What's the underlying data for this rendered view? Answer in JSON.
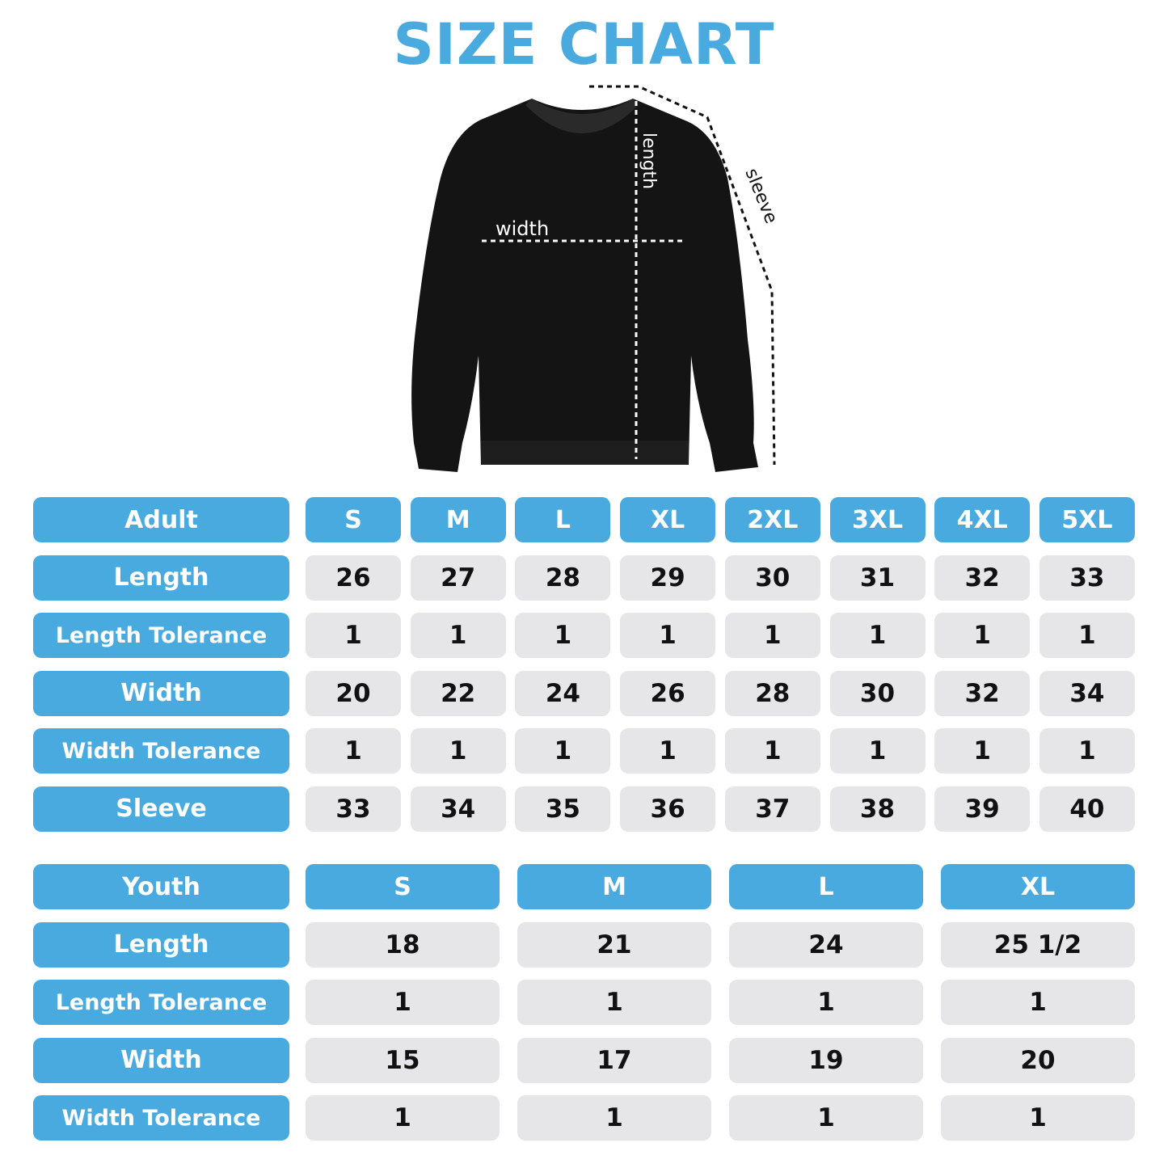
{
  "title": "SIZE CHART",
  "diagram_labels": {
    "width": "width",
    "length": "length",
    "sleeve": "sleeve"
  },
  "colors": {
    "accent": "#48aadf",
    "cell_bg": "#e6e6e8",
    "garment": "#111111"
  },
  "garment_icon": "sweatshirt-icon",
  "tables": [
    {
      "name": "adult",
      "header": "Adult",
      "sizes": [
        "S",
        "M",
        "L",
        "XL",
        "2XL",
        "3XL",
        "4XL",
        "5XL"
      ],
      "rows": [
        {
          "label": "Length",
          "values": [
            "26",
            "27",
            "28",
            "29",
            "30",
            "31",
            "32",
            "33"
          ]
        },
        {
          "label": "Length Tolerance",
          "values": [
            "1",
            "1",
            "1",
            "1",
            "1",
            "1",
            "1",
            "1"
          ]
        },
        {
          "label": "Width",
          "values": [
            "20",
            "22",
            "24",
            "26",
            "28",
            "30",
            "32",
            "34"
          ]
        },
        {
          "label": "Width Tolerance",
          "values": [
            "1",
            "1",
            "1",
            "1",
            "1",
            "1",
            "1",
            "1"
          ]
        },
        {
          "label": "Sleeve",
          "values": [
            "33",
            "34",
            "35",
            "36",
            "37",
            "38",
            "39",
            "40"
          ]
        }
      ]
    },
    {
      "name": "youth",
      "header": "Youth",
      "sizes": [
        "S",
        "M",
        "L",
        "XL"
      ],
      "rows": [
        {
          "label": "Length",
          "values": [
            "18",
            "21",
            "24",
            "25 1/2"
          ]
        },
        {
          "label": "Length Tolerance",
          "values": [
            "1",
            "1",
            "1",
            "1"
          ]
        },
        {
          "label": "Width",
          "values": [
            "15",
            "17",
            "19",
            "20"
          ]
        },
        {
          "label": "Width Tolerance",
          "values": [
            "1",
            "1",
            "1",
            "1"
          ]
        }
      ]
    }
  ]
}
